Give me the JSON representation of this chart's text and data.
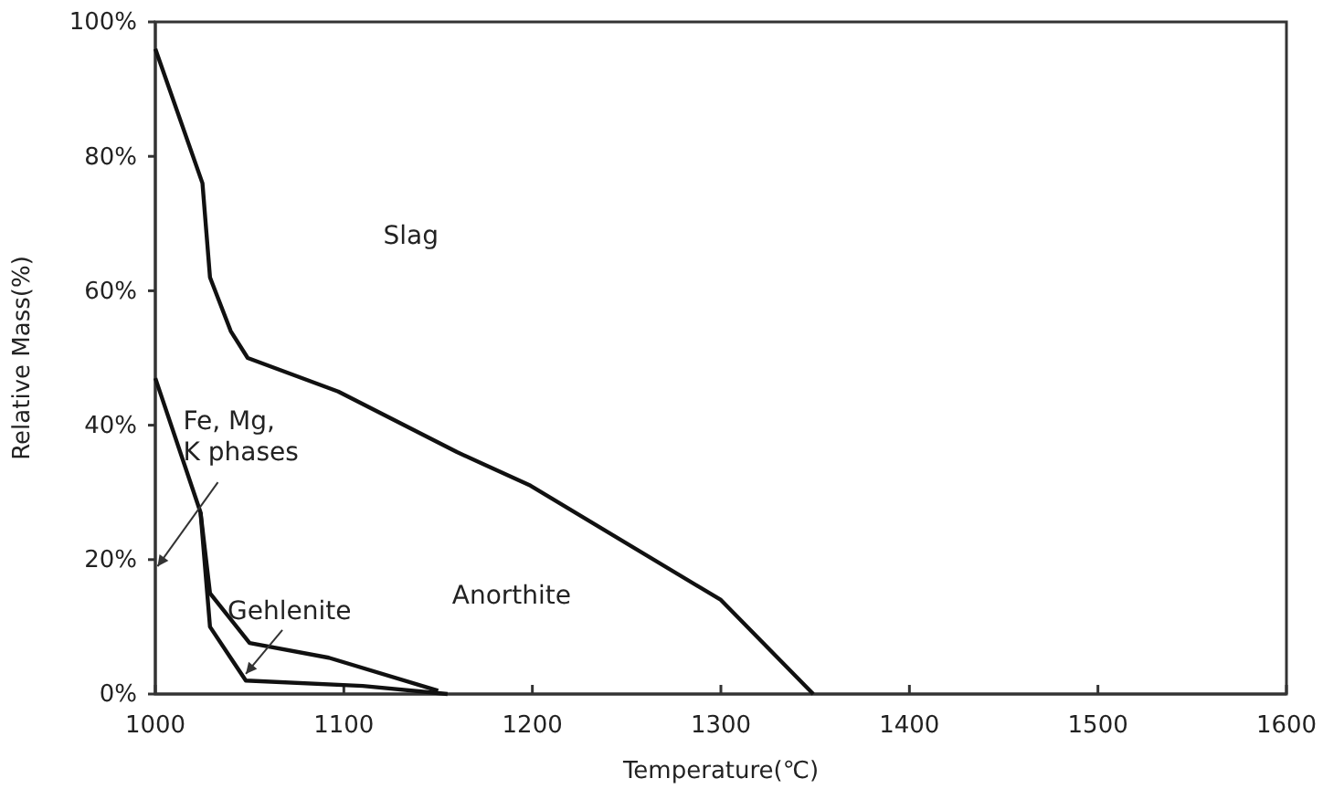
{
  "chart_data": {
    "type": "line",
    "xlabel": "Temperature(℃)",
    "ylabel": "Relative Mass(%)",
    "xlim": [
      1000,
      1600
    ],
    "xticks": [
      1000,
      1100,
      1200,
      1300,
      1400,
      1500,
      1600
    ],
    "ylim": [
      0,
      100
    ],
    "yticks": [
      {
        "value": 0,
        "label": "0%"
      },
      {
        "value": 20,
        "label": "20%"
      },
      {
        "value": 40,
        "label": "40%"
      },
      {
        "value": 60,
        "label": "60%"
      },
      {
        "value": 80,
        "label": "80%"
      },
      {
        "value": 100,
        "label": "100%"
      }
    ],
    "series": [
      {
        "color": "#111111",
        "x": [
          1000,
          1025,
          1029,
          1040,
          1049,
          1097,
          1160,
          1199,
          1300,
          1349
        ],
        "values": [
          96,
          76,
          62,
          54,
          50,
          45,
          36,
          31,
          14,
          0
        ]
      },
      {
        "color": "#111111",
        "x": [
          1000,
          1024,
          1029,
          1050,
          1092,
          1150
        ],
        "values": [
          47,
          27,
          15,
          7.6,
          5.4,
          0.5
        ]
      },
      {
        "color": "#111111",
        "x": [
          1024,
          1029,
          1048,
          1110,
          1155
        ],
        "values": [
          27,
          10,
          2,
          1.2,
          0
        ]
      }
    ],
    "annotations": [
      "Slag",
      "Fe, Mg,\nK phases",
      {
        "text": "Gehlenite",
        "x": 1048,
        "y": 3
      },
      "Anorthite"
    ],
    "grid": false,
    "marker": "none",
    "line_style": "solid"
  }
}
